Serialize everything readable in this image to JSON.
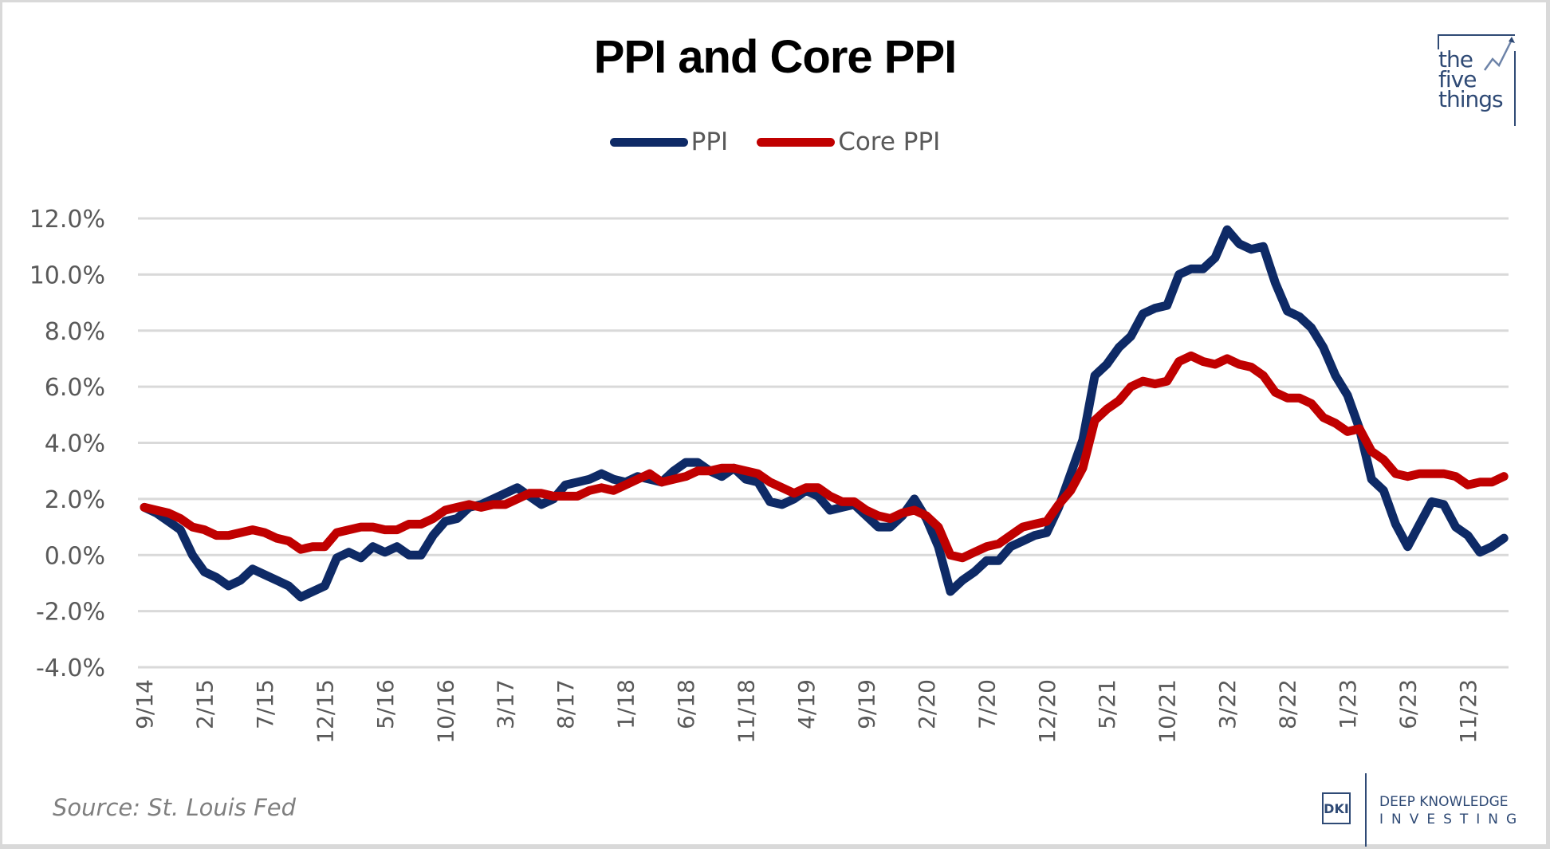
{
  "chart_data": {
    "type": "line",
    "title": "PPI and Core PPI",
    "xlabel": "",
    "ylabel": "",
    "ylim": [
      -4.0,
      12.0
    ],
    "yticks": [
      "12.0%",
      "10.0%",
      "8.0%",
      "6.0%",
      "4.0%",
      "2.0%",
      "0.0%",
      "-2.0%",
      "-4.0%"
    ],
    "ytick_values": [
      12,
      10,
      8,
      6,
      4,
      2,
      0,
      -2,
      -4
    ],
    "grid": true,
    "legend_position": "top-center",
    "x_start": "9/14",
    "x_end": "2/24",
    "xtick_labels": [
      "9/14",
      "2/15",
      "7/15",
      "12/15",
      "5/16",
      "10/16",
      "3/17",
      "8/17",
      "1/18",
      "6/18",
      "11/18",
      "4/19",
      "9/19",
      "2/20",
      "7/20",
      "12/20",
      "5/21",
      "10/21",
      "3/22",
      "8/22",
      "1/23",
      "6/23",
      "11/23"
    ],
    "xtick_every_months": 5,
    "series": [
      {
        "name": "PPI",
        "color": "#0e2a66",
        "values": [
          1.7,
          1.5,
          1.2,
          0.9,
          0.0,
          -0.6,
          -0.8,
          -1.1,
          -0.9,
          -0.5,
          -0.7,
          -0.9,
          -1.1,
          -1.5,
          -1.3,
          -1.1,
          -0.1,
          0.1,
          -0.1,
          0.3,
          0.1,
          0.3,
          0.0,
          0.0,
          0.7,
          1.2,
          1.3,
          1.7,
          1.8,
          2.0,
          2.2,
          2.4,
          2.1,
          1.8,
          2.0,
          2.5,
          2.6,
          2.7,
          2.9,
          2.7,
          2.6,
          2.8,
          2.7,
          2.6,
          3.0,
          3.3,
          3.3,
          3.0,
          2.8,
          3.1,
          2.7,
          2.6,
          1.9,
          1.8,
          2.0,
          2.3,
          2.1,
          1.6,
          1.7,
          1.8,
          1.4,
          1.0,
          1.0,
          1.4,
          2.0,
          1.3,
          0.3,
          -1.3,
          -0.9,
          -0.6,
          -0.2,
          -0.2,
          0.3,
          0.5,
          0.7,
          0.8,
          1.7,
          2.9,
          4.1,
          6.4,
          6.8,
          7.4,
          7.8,
          8.6,
          8.8,
          8.9,
          10.0,
          10.2,
          10.2,
          10.6,
          11.6,
          11.1,
          10.9,
          11.0,
          9.7,
          8.7,
          8.5,
          8.1,
          7.4,
          6.4,
          5.7,
          4.5,
          2.7,
          2.3,
          1.1,
          0.3,
          1.1,
          1.9,
          1.8,
          1.0,
          0.7,
          0.1,
          0.3,
          0.6
        ]
      },
      {
        "name": "Core PPI",
        "color": "#c00000",
        "values": [
          1.7,
          1.6,
          1.5,
          1.3,
          1.0,
          0.9,
          0.7,
          0.7,
          0.8,
          0.9,
          0.8,
          0.6,
          0.5,
          0.2,
          0.3,
          0.3,
          0.8,
          0.9,
          1.0,
          1.0,
          0.9,
          0.9,
          1.1,
          1.1,
          1.3,
          1.6,
          1.7,
          1.8,
          1.7,
          1.8,
          1.8,
          2.0,
          2.2,
          2.2,
          2.1,
          2.1,
          2.1,
          2.3,
          2.4,
          2.3,
          2.5,
          2.7,
          2.9,
          2.6,
          2.7,
          2.8,
          3.0,
          3.0,
          3.1,
          3.1,
          3.0,
          2.9,
          2.6,
          2.4,
          2.2,
          2.4,
          2.4,
          2.1,
          1.9,
          1.9,
          1.6,
          1.4,
          1.3,
          1.5,
          1.6,
          1.4,
          1.0,
          0.0,
          -0.1,
          0.1,
          0.3,
          0.4,
          0.7,
          1.0,
          1.1,
          1.2,
          1.8,
          2.3,
          3.1,
          4.8,
          5.2,
          5.5,
          6.0,
          6.2,
          6.1,
          6.2,
          6.9,
          7.1,
          6.9,
          6.8,
          7.0,
          6.8,
          6.7,
          6.4,
          5.8,
          5.6,
          5.6,
          5.4,
          4.9,
          4.7,
          4.4,
          4.5,
          3.7,
          3.4,
          2.9,
          2.8,
          2.9,
          2.9,
          2.9,
          2.8,
          2.5,
          2.6,
          2.6,
          2.8
        ]
      }
    ]
  },
  "source": "Source: St. Louis Fed",
  "logos": {
    "five_things": "the five things",
    "five_things_lines": [
      "the",
      "five",
      "things"
    ],
    "dki_mark": "DKI",
    "dki_line1": "DEEP KNOWLEDGE",
    "dki_line2": "INVESTING"
  }
}
